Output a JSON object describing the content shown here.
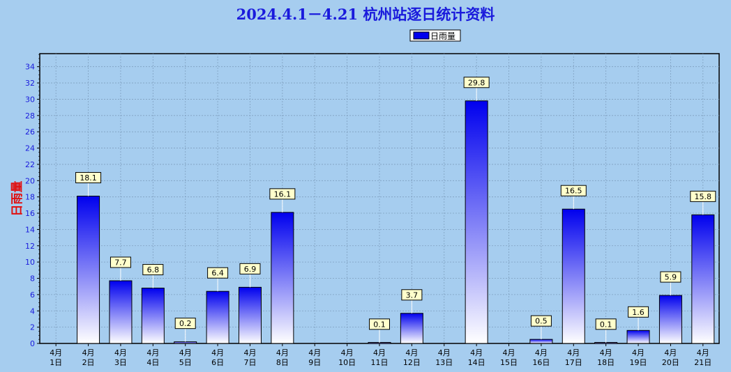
{
  "chart_data": {
    "type": "bar",
    "title": "2024.4.1－4.21 杭州站逐日统计资料",
    "ylabel": "日雨量",
    "xlabel": "",
    "legend": {
      "entries": [
        "日雨量"
      ],
      "placement": "top-center"
    },
    "ylim": [
      0,
      35.6
    ],
    "yticks": [
      0,
      2,
      4,
      6,
      8,
      10,
      12,
      14,
      16,
      18,
      20,
      22,
      24,
      26,
      28,
      30,
      32,
      34
    ],
    "grid": true,
    "categories": [
      [
        "4月",
        "1日"
      ],
      [
        "4月",
        "2日"
      ],
      [
        "4月",
        "3日"
      ],
      [
        "4月",
        "4日"
      ],
      [
        "4月",
        "5日"
      ],
      [
        "4月",
        "6日"
      ],
      [
        "4月",
        "7日"
      ],
      [
        "4月",
        "8日"
      ],
      [
        "4月",
        "9日"
      ],
      [
        "4月",
        "10日"
      ],
      [
        "4月",
        "11日"
      ],
      [
        "4月",
        "12日"
      ],
      [
        "4月",
        "13日"
      ],
      [
        "4月",
        "14日"
      ],
      [
        "4月",
        "15日"
      ],
      [
        "4月",
        "16日"
      ],
      [
        "4月",
        "17日"
      ],
      [
        "4月",
        "18日"
      ],
      [
        "4月",
        "19日"
      ],
      [
        "4月",
        "20日"
      ],
      [
        "4月",
        "21日"
      ]
    ],
    "series": [
      {
        "name": "日雨量",
        "values": [
          0,
          18.1,
          7.7,
          6.8,
          0.2,
          6.4,
          6.9,
          16.1,
          0,
          0,
          0.1,
          3.7,
          0,
          29.8,
          0,
          0.5,
          16.5,
          0.1,
          1.6,
          5.9,
          15.8
        ],
        "labels": [
          "",
          "18.1",
          "7.7",
          "6.8",
          "0.2",
          "6.4",
          "6.9",
          "16.1",
          "",
          "",
          "0.1",
          "3.7",
          "",
          "29.8",
          "",
          "0.5",
          "16.5",
          "0.1",
          "1.6",
          "5.9",
          "15.8"
        ]
      }
    ],
    "colors": {
      "bar_top": "#0000ee",
      "bar_bottom": "#ffffff",
      "background": "#a6cdef",
      "title": "#1a1adc",
      "ylabel": "#e01010",
      "ytick": "#1a1adc"
    }
  }
}
